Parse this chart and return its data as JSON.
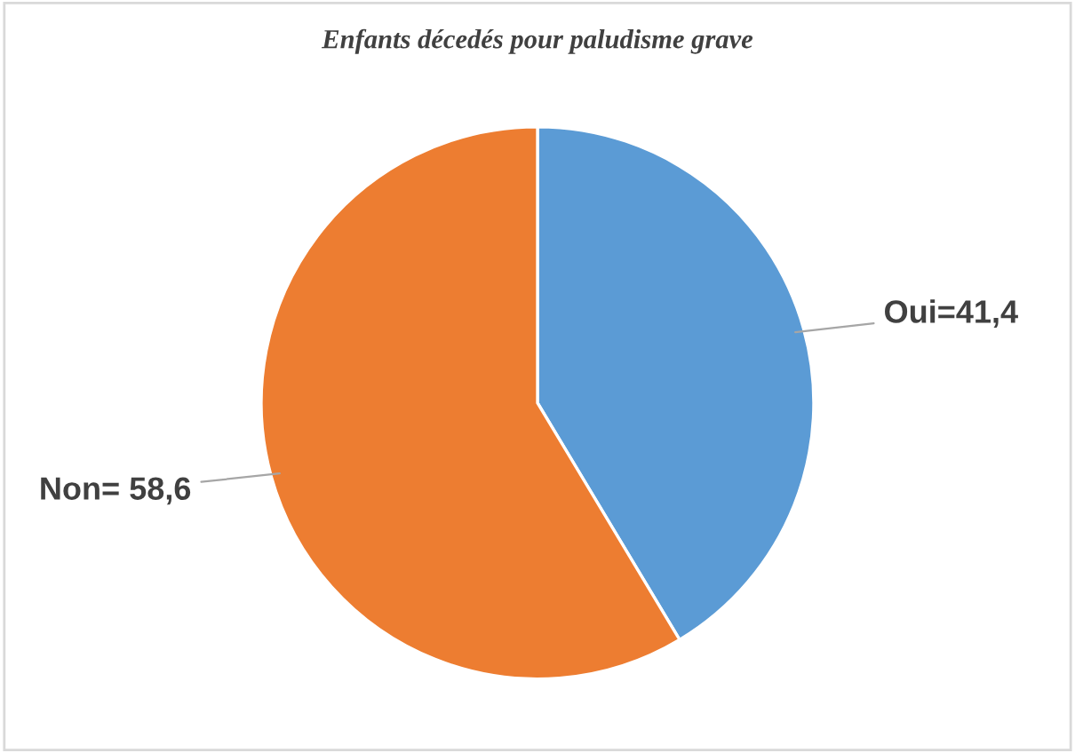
{
  "chart_data": {
    "type": "pie",
    "title": "Enfants décedés pour paludisme grave",
    "values": [
      41.4,
      58.6
    ],
    "colors": [
      "#5b9bd5",
      "#ed7d31"
    ],
    "value_labels": [
      "Oui=41,4",
      "Non= 58,6"
    ]
  }
}
